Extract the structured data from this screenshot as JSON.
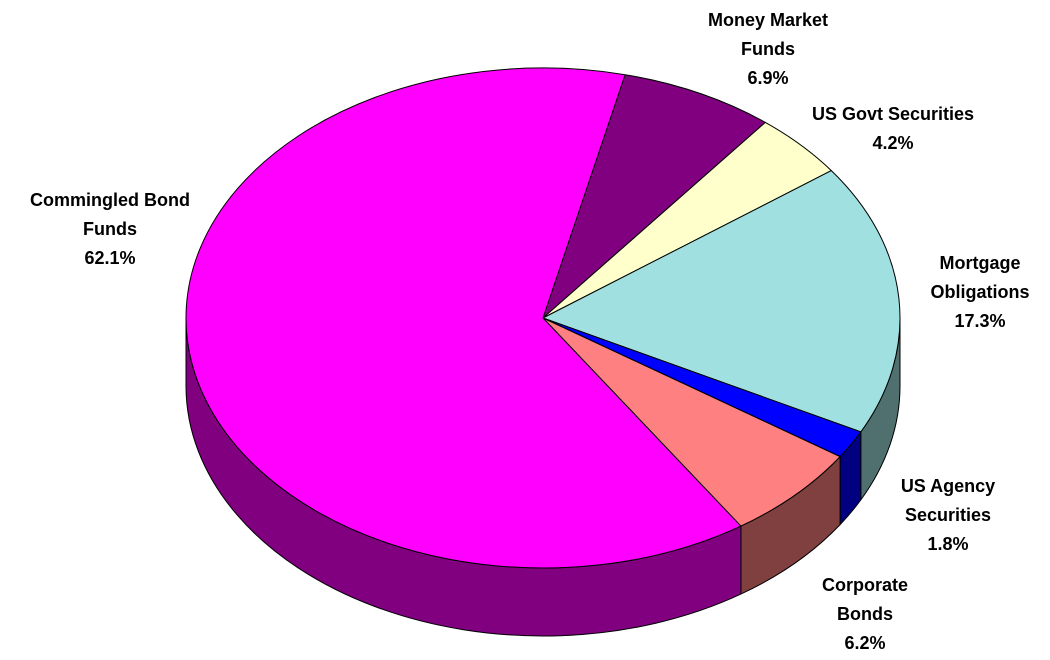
{
  "chart_data": {
    "type": "pie3d",
    "categories": [
      "Money Market Funds",
      "US Govt Securities",
      "Mortgage Obligations",
      "US Agency Securities",
      "Corporate Bonds",
      "Commingled Bond Funds"
    ],
    "values": [
      6.9,
      4.2,
      17.3,
      1.8,
      6.2,
      62.1
    ],
    "value_labels": [
      "6.9%",
      "4.2%",
      "17.3%",
      "1.8%",
      "6.2%",
      "62.1%"
    ],
    "colors": [
      "#800080",
      "#ffffcc",
      "#a0e0e0",
      "#0000ff",
      "#ff8080",
      "#ff00ff"
    ],
    "side_colors": [
      "#400040",
      "#808066",
      "#507070",
      "#000080",
      "#804040",
      "#800080"
    ]
  }
}
